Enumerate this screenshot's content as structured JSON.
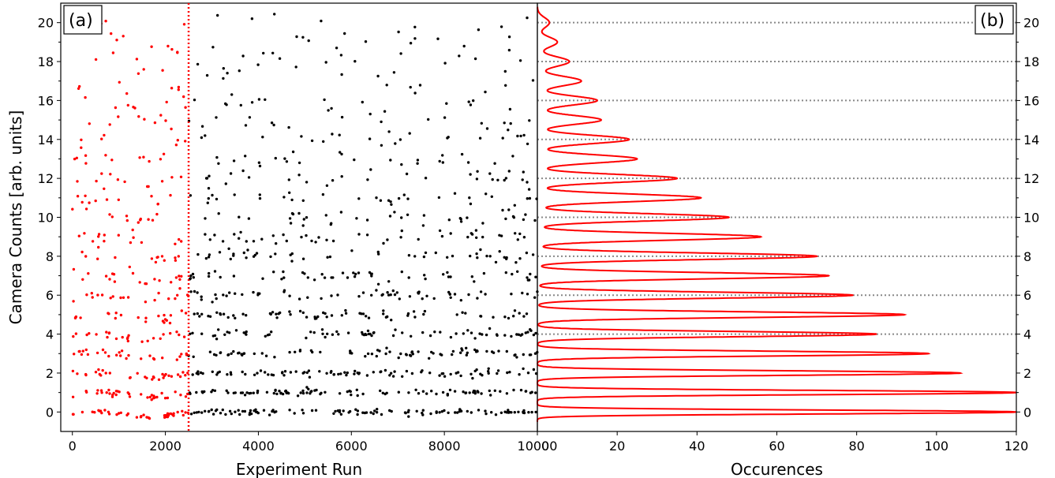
{
  "chart_data": [
    {
      "type": "scatter",
      "panel_label": "(a)",
      "xlabel": "Experiment Run",
      "ylabel": "Camera Counts [arb. units]",
      "xlim": [
        -250,
        10000
      ],
      "ylim": [
        -1,
        21
      ],
      "x_ticks": [
        0,
        2000,
        4000,
        6000,
        8000,
        10000
      ],
      "x_tick_labels": [
        "0",
        "2000",
        "4000",
        "6000",
        "8000",
        "10000"
      ],
      "y_ticks": [
        0,
        2,
        4,
        6,
        8,
        10,
        12,
        14,
        16,
        18,
        20
      ],
      "y_tick_labels": [
        "0",
        "2",
        "4",
        "6",
        "8",
        "10",
        "12",
        "14",
        "16",
        "18",
        "20"
      ],
      "divider_x": 2500,
      "divider_color": "#ff0000",
      "series": [
        {
          "color": "#ff0000",
          "x_range": [
            0,
            2500
          ],
          "levels": [
            0,
            1,
            2,
            3,
            4,
            5,
            6,
            7,
            8,
            9,
            10,
            11,
            12,
            13,
            14,
            15,
            16,
            17,
            18,
            19,
            20
          ],
          "level_weights": [
            100,
            85,
            70,
            60,
            52,
            46,
            40,
            34,
            28,
            24,
            20,
            17,
            14,
            11,
            9,
            7,
            5,
            4,
            3,
            2,
            1
          ]
        },
        {
          "color": "#000000",
          "x_range": [
            2500,
            10000
          ],
          "levels": [
            0,
            1,
            2,
            3,
            4,
            5,
            6,
            7,
            8,
            9,
            10,
            11,
            12,
            13,
            14,
            15,
            16,
            17,
            18,
            19,
            20
          ],
          "level_weights": [
            100,
            90,
            80,
            72,
            64,
            58,
            52,
            46,
            40,
            35,
            30,
            26,
            22,
            19,
            16,
            13,
            11,
            9,
            7,
            6,
            5
          ]
        }
      ]
    },
    {
      "type": "bar",
      "orientation": "horizontal",
      "panel_label": "(b)",
      "xlabel": "Occurences",
      "xlim": [
        0,
        120
      ],
      "x_ticks": [
        0,
        20,
        40,
        60,
        80,
        100,
        120
      ],
      "x_tick_labels": [
        "0",
        "20",
        "40",
        "60",
        "80",
        "100",
        "120"
      ],
      "y_ticks": [
        0,
        2,
        4,
        6,
        8,
        10,
        12,
        14,
        16,
        18,
        20
      ],
      "y_tick_labels": [
        "0",
        "2",
        "4",
        "6",
        "8",
        "10",
        "12",
        "14",
        "16",
        "18",
        "20"
      ],
      "grid_lines_y": [
        4,
        6,
        8,
        10,
        12,
        14,
        16,
        18,
        20
      ],
      "peak_centers": [
        0,
        1,
        2,
        3,
        4,
        5,
        6,
        7,
        8,
        9,
        10,
        11,
        12,
        13,
        14,
        15,
        16,
        17,
        18,
        19,
        20
      ],
      "histogram_peaks": [
        120,
        120,
        106,
        104,
        90,
        92,
        81,
        79,
        77,
        62,
        51,
        48,
        43,
        32,
        27,
        20,
        19,
        12,
        11,
        9,
        5
      ],
      "fit_peaks": [
        120,
        120,
        106,
        98,
        85,
        92,
        79,
        73,
        70,
        56,
        48,
        41,
        35,
        25,
        23,
        16,
        15,
        11,
        8,
        5,
        3
      ],
      "fit_color": "#ff0000",
      "bar_color": "#000000"
    }
  ]
}
